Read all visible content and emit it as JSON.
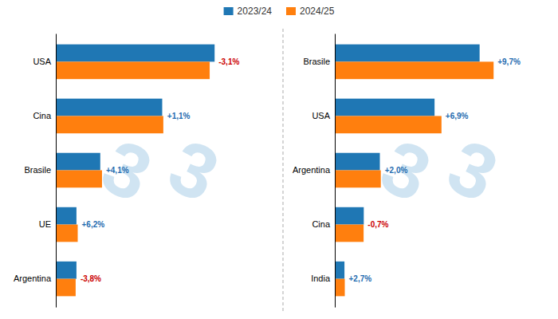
{
  "chart_data": [
    {
      "type": "bar",
      "orientation": "horizontal",
      "categories": [
        "USA",
        "Cina",
        "Brasile",
        "UE",
        "Argentina"
      ],
      "series": [
        {
          "name": "2023/24",
          "values": [
            100,
            67,
            28,
            13,
            13
          ]
        },
        {
          "name": "2024/25",
          "values": [
            96.9,
            67.7,
            29.1,
            13.8,
            12.5
          ]
        }
      ],
      "xlim": [
        0,
        128
      ],
      "tick_labels": "y",
      "grid": false,
      "legend": "top",
      "annotations": [
        {
          "text": "-3,1%",
          "color": "#cc0000"
        },
        {
          "text": "+1,1%",
          "color": "#1f6cb0"
        },
        {
          "text": "+4,1%",
          "color": "#1f6cb0"
        },
        {
          "text": "+6,2%",
          "color": "#1f6cb0"
        },
        {
          "text": "-3,8%",
          "color": "#cc0000"
        }
      ],
      "watermark": {
        "text": "3",
        "color": "#d0e4f2"
      }
    },
    {
      "type": "bar",
      "orientation": "horizontal",
      "categories": [
        "Brasile",
        "USA",
        "Argentina",
        "Cina",
        "India"
      ],
      "series": [
        {
          "name": "2023/24",
          "values": [
            90,
            62,
            28,
            18,
            6
          ]
        },
        {
          "name": "2024/25",
          "values": [
            98.7,
            66.3,
            28.6,
            17.9,
            6.2
          ]
        }
      ],
      "xlim": [
        0,
        126.336
      ],
      "tick_labels": "y",
      "grid": false,
      "annotations": [
        {
          "text": "+9,7%",
          "color": "#1f6cb0"
        },
        {
          "text": "+6,9%",
          "color": "#1f6cb0"
        },
        {
          "text": "+2,0%",
          "color": "#1f6cb0"
        },
        {
          "text": "-0,7%",
          "color": "#cc0000"
        },
        {
          "text": "+2,7%",
          "color": "#1f6cb0"
        }
      ],
      "watermark": {
        "text": "3",
        "color": "#d0e4f2"
      }
    }
  ]
}
